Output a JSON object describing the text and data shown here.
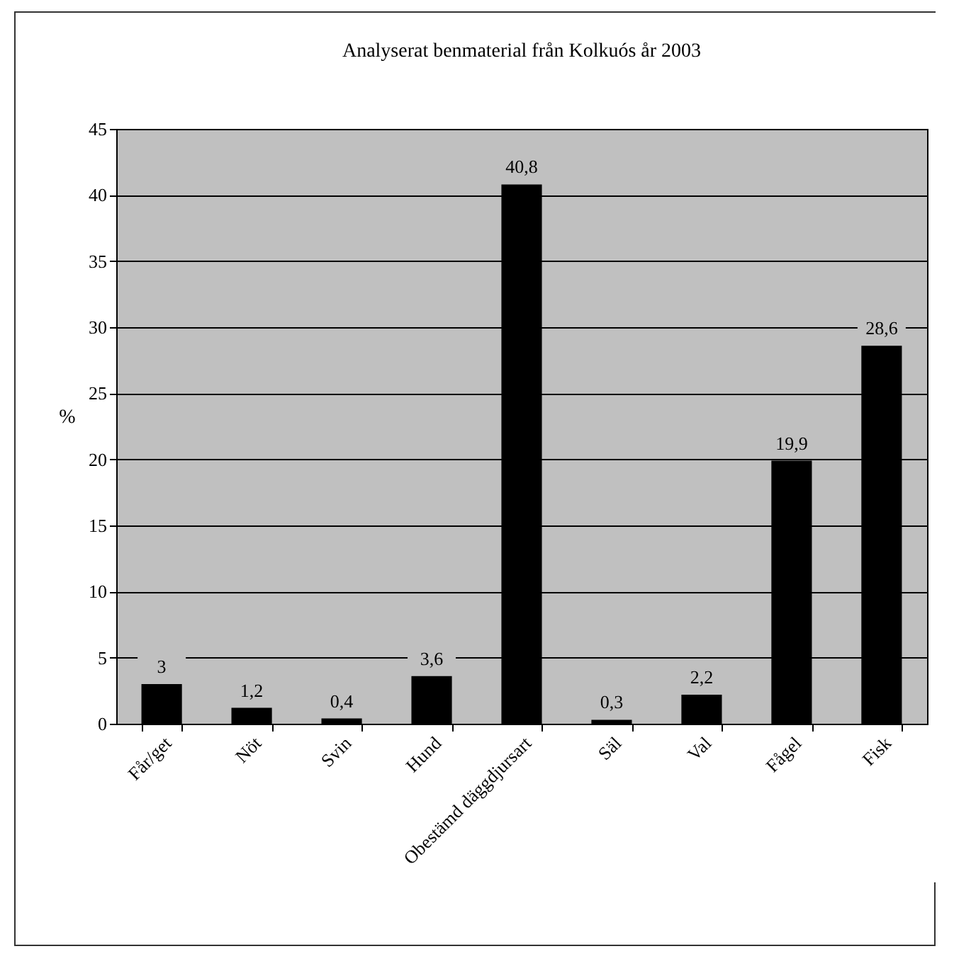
{
  "chart_data": {
    "type": "bar",
    "title": "Analyserat benmaterial från Kolkuós år 2003",
    "ylabel": "%",
    "categories": [
      "Får/get",
      "Nöt",
      "Svin",
      "Hund",
      "Obestämd däggdjursart",
      "Säl",
      "Val",
      "Fågel",
      "Fisk"
    ],
    "values": [
      3,
      1.2,
      0.4,
      3.6,
      40.8,
      0.3,
      2.2,
      19.9,
      28.6
    ],
    "value_labels": [
      "3",
      "1,2",
      "0,4",
      "3,6",
      "40,8",
      "0,3",
      "2,2",
      "19,9",
      "28,6"
    ],
    "color": "#000000",
    "ylim": [
      0,
      45
    ],
    "yticks": [
      0,
      5,
      10,
      15,
      20,
      25,
      30,
      35,
      40,
      45
    ],
    "grid": "y"
  }
}
